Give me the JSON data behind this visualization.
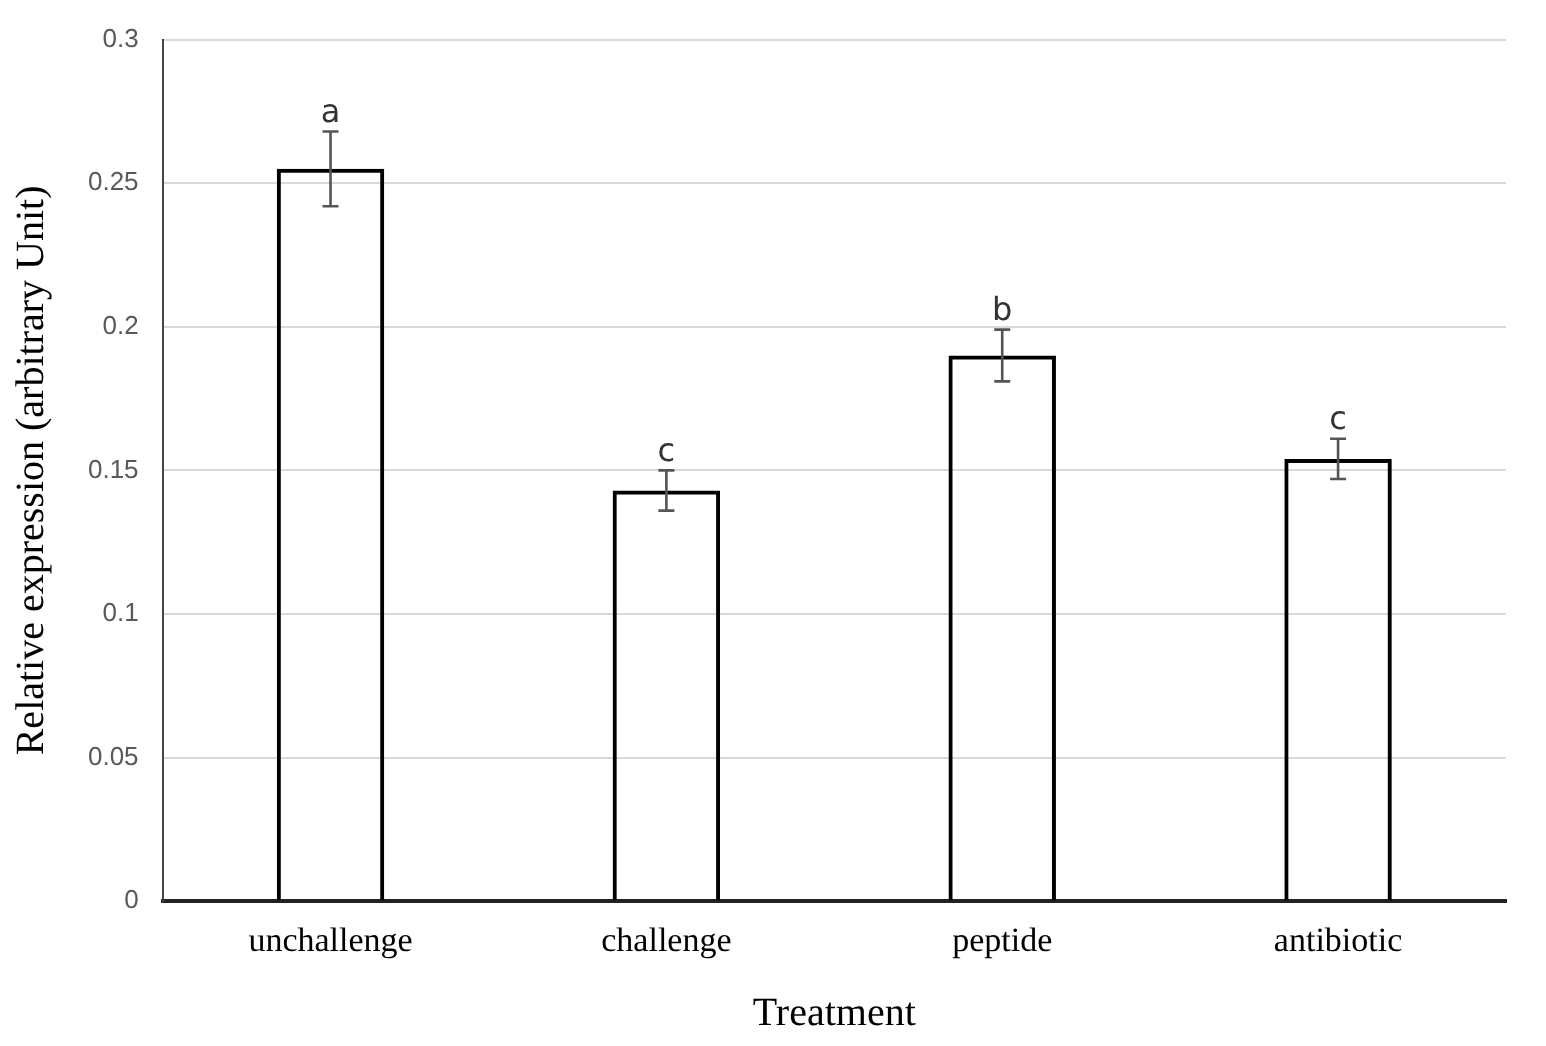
{
  "chart_data": {
    "type": "bar",
    "xlabel": "Treatment",
    "ylabel": "Relative expression (arbitrary Unit)",
    "categories": [
      "unchallenge",
      "challenge",
      "peptide",
      "antibiotic"
    ],
    "values": [
      0.255,
      0.143,
      0.19,
      0.154
    ],
    "errors": [
      0.013,
      0.007,
      0.009,
      0.007
    ],
    "color": "#000000",
    "ylim": [
      0,
      0.3
    ],
    "yticks": [
      0,
      0.05,
      0.1,
      0.15,
      0.2,
      0.25,
      0.3
    ],
    "grid": "y",
    "legend": false,
    "annotations": [
      {
        "text": "a",
        "x": "unchallenge",
        "y": 0.268
      },
      {
        "text": "c",
        "x": "challenge",
        "y": 0.15
      },
      {
        "text": "b",
        "x": "peptide",
        "y": 0.199
      },
      {
        "text": "c",
        "x": "antibiotic",
        "y": 0.161
      }
    ]
  }
}
